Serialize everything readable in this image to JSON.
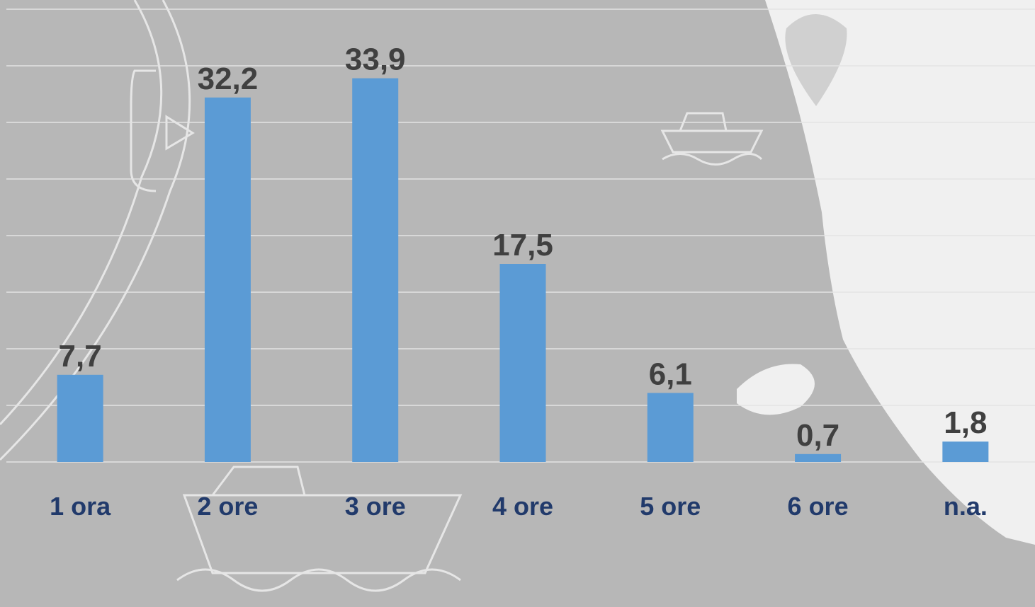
{
  "chart_data": {
    "type": "bar",
    "categories": [
      "1 ora",
      "2 ore",
      "3 ore",
      "4 ore",
      "5 ore",
      "6 ore",
      "n.a."
    ],
    "values": [
      7.7,
      32.2,
      33.9,
      17.5,
      6.1,
      0.7,
      1.8
    ],
    "value_labels": [
      "7,7",
      "32,2",
      "33,9",
      "17,5",
      "6,1",
      "0,7",
      "1,8"
    ],
    "color": "#5b9bd5",
    "ylim": [
      0,
      40
    ],
    "yticks": [
      0,
      5,
      10,
      15,
      20,
      25,
      30,
      35,
      40
    ],
    "grid": true
  }
}
